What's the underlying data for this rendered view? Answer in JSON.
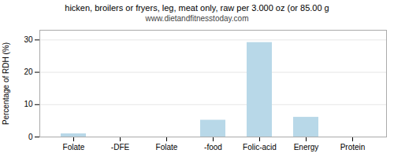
{
  "chart_data": {
    "type": "bar",
    "title": "hicken, broilers or fryers, leg, meat only, raw per 3.000 oz (or 85.00 g",
    "subtitle": "www.dietandfitnesstoday.com",
    "categories": [
      "Folate",
      "-DFE",
      "Folate",
      "-food",
      "Folic-acid",
      "Energy",
      "Protein"
    ],
    "values": [
      1.0,
      0,
      0,
      5.2,
      29.2,
      6.1,
      0
    ],
    "color": "#b8d8e8",
    "ylabel": "Percentage of RDH (%)",
    "ylim": [
      0,
      33
    ],
    "yticks": [
      0,
      10,
      20,
      30
    ],
    "grid": true
  }
}
